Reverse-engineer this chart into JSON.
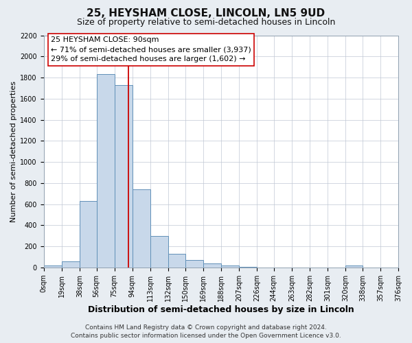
{
  "title": "25, HEYSHAM CLOSE, LINCOLN, LN5 9UD",
  "subtitle": "Size of property relative to semi-detached houses in Lincoln",
  "xlabel": "Distribution of semi-detached houses by size in Lincoln",
  "ylabel": "Number of semi-detached properties",
  "bin_edges": [
    0,
    19,
    38,
    56,
    75,
    94,
    113,
    132,
    150,
    169,
    188,
    207,
    226,
    244,
    263,
    282,
    301,
    320,
    338,
    357,
    376
  ],
  "bin_counts": [
    20,
    60,
    630,
    1830,
    1730,
    740,
    300,
    130,
    70,
    40,
    20,
    5,
    0,
    0,
    0,
    0,
    0,
    20,
    0,
    0
  ],
  "bar_color": "#c8d8ea",
  "bar_edge_color": "#6090b8",
  "property_size": 90,
  "vline_color": "#cc0000",
  "annotation_title": "25 HEYSHAM CLOSE: 90sqm",
  "annotation_line1": "← 71% of semi-detached houses are smaller (3,937)",
  "annotation_line2": "29% of semi-detached houses are larger (1,602) →",
  "annotation_box_facecolor": "#ffffff",
  "annotation_box_edgecolor": "#cc0000",
  "ylim_max": 2200,
  "yticks": [
    0,
    200,
    400,
    600,
    800,
    1000,
    1200,
    1400,
    1600,
    1800,
    2000,
    2200
  ],
  "xtick_labels": [
    "0sqm",
    "19sqm",
    "38sqm",
    "56sqm",
    "75sqm",
    "94sqm",
    "113sqm",
    "132sqm",
    "150sqm",
    "169sqm",
    "188sqm",
    "207sqm",
    "226sqm",
    "244sqm",
    "263sqm",
    "282sqm",
    "301sqm",
    "320sqm",
    "338sqm",
    "357sqm",
    "376sqm"
  ],
  "footer1": "Contains HM Land Registry data © Crown copyright and database right 2024.",
  "footer2": "Contains public sector information licensed under the Open Government Licence v3.0.",
  "title_fontsize": 11,
  "subtitle_fontsize": 9,
  "xlabel_fontsize": 9,
  "ylabel_fontsize": 8,
  "tick_fontsize": 7,
  "annotation_fontsize": 8,
  "footer_fontsize": 6.5,
  "figure_bg": "#e8edf2",
  "plot_bg": "#ffffff",
  "grid_color": "#c0c8d4"
}
